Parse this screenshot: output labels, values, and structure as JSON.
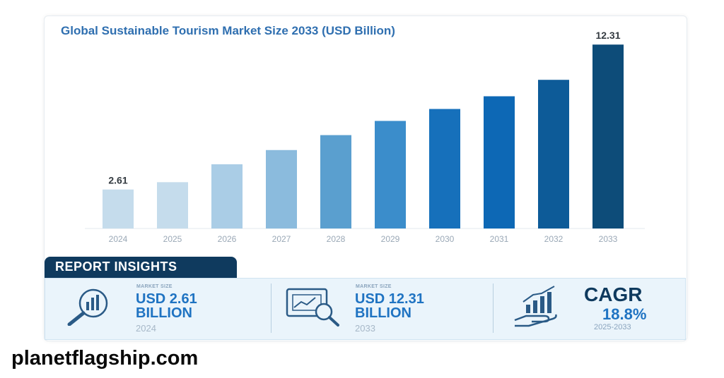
{
  "chart_data": {
    "type": "bar",
    "title": "Global Sustainable Tourism Market Size 2033 (USD Billion)",
    "categories": [
      "2024",
      "2025",
      "2026",
      "2027",
      "2028",
      "2029",
      "2030",
      "2031",
      "2032",
      "2033"
    ],
    "values": [
      2.61,
      3.1,
      4.3,
      5.25,
      6.25,
      7.2,
      8.0,
      8.85,
      9.95,
      12.31
    ],
    "data_labels": [
      "2.61",
      "",
      "",
      "",
      "",
      "",
      "",
      "",
      "",
      "12.31"
    ],
    "bar_colors": [
      "#c5dcec",
      "#c5dcec",
      "#aacde6",
      "#8bbbdd",
      "#5a9fcf",
      "#3b8dcb",
      "#1670bb",
      "#0d68b5",
      "#0d5b98",
      "#0d4c79"
    ],
    "ylim": [
      0,
      13.5
    ],
    "grid": false,
    "legend": "none"
  },
  "insights": {
    "header": "REPORT INSIGHTS",
    "items": [
      {
        "icon": "magnifier-chart-icon",
        "label": "MARKET SIZE",
        "value_line1": "USD 2.61",
        "value_line2": "BILLION",
        "year": "2024"
      },
      {
        "icon": "monitor-magnifier-icon",
        "label": "MARKET SIZE",
        "value_line1": "USD 12.31",
        "value_line2": "BILLION",
        "year": "2033"
      }
    ],
    "cagr": {
      "icon": "hand-growth-chart-icon",
      "title": "CAGR",
      "value": "18.8%",
      "range": "2025-2033"
    }
  },
  "watermark": "planetflagship.com",
  "colors": {
    "title": "#2f6fb0",
    "accent": "#1f73c2",
    "dark": "#0f3a5e"
  }
}
